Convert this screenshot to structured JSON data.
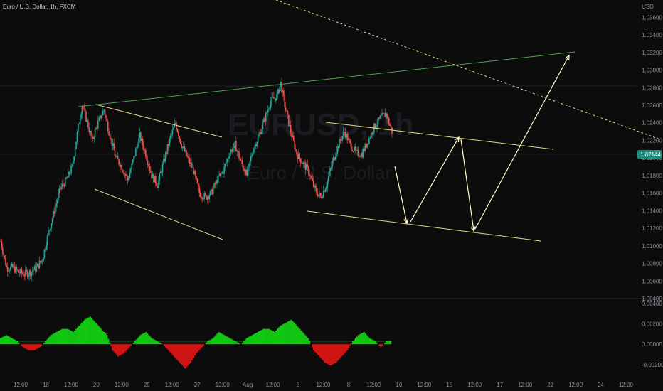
{
  "header": {
    "symbol_title": "Euro / U.S. Dollar, 1h, FXCM",
    "currency": "USD",
    "watermark_symbol": "EURUSD, 1h",
    "watermark_name": "Euro / U.S. Dollar"
  },
  "colors": {
    "background": "#0c0c0c",
    "candle_up": "#26a69a",
    "candle_down": "#ef5350",
    "trendline": "#e6d68a",
    "upper_line": "#4f9d57",
    "dotted_line": "#e6d68a",
    "price_badge": "#1d8b7e",
    "hist_up": "#12c712",
    "hist_down": "#d01515",
    "arrow": "#ffffcc"
  },
  "chart_data": [
    {
      "type": "candlestick",
      "symbol": "EURUSD",
      "timeframe": "1h",
      "source": "FXCM",
      "current_price": "1.02144",
      "y_ticks": [
        "1.03600",
        "1.03400",
        "1.03200",
        "1.03000",
        "1.02800",
        "1.02600",
        "1.02400",
        "1.02200",
        "1.02000",
        "1.01800",
        "1.01600",
        "1.01400",
        "1.01200",
        "1.01000",
        "1.00800",
        "1.00600",
        "1.00400"
      ],
      "x_ticks": [
        "12:00",
        "18",
        "12:00",
        "20",
        "12:00",
        "25",
        "12:00",
        "27",
        "12:00",
        "Aug",
        "12:00",
        "3",
        "12:00",
        "8",
        "12:00",
        "10",
        "12:00",
        "15",
        "12:00",
        "17",
        "12:00",
        "22",
        "12:00",
        "24",
        "12:00"
      ],
      "ylim": [
        1.004,
        1.037
      ],
      "path": [
        [
          0,
          1.0105
        ],
        [
          3,
          1.0075
        ],
        [
          6,
          1.0075
        ],
        [
          9,
          1.007
        ],
        [
          12,
          1.0068
        ],
        [
          15,
          1.007
        ],
        [
          18,
          1.0075
        ],
        [
          21,
          1.0085
        ],
        [
          24,
          1.0115
        ],
        [
          27,
          1.014
        ],
        [
          30,
          1.0165
        ],
        [
          33,
          1.0175
        ],
        [
          36,
          1.019
        ],
        [
          39,
          1.0235
        ],
        [
          41,
          1.026
        ],
        [
          43,
          1.0245
        ],
        [
          46,
          1.022
        ],
        [
          49,
          1.024
        ],
        [
          52,
          1.0255
        ],
        [
          55,
          1.0225
        ],
        [
          58,
          1.02
        ],
        [
          61,
          1.019
        ],
        [
          64,
          1.0175
        ],
        [
          67,
          1.02
        ],
        [
          70,
          1.0225
        ],
        [
          73,
          1.0205
        ],
        [
          76,
          1.018
        ],
        [
          79,
          1.017
        ],
        [
          82,
          1.0195
        ],
        [
          85,
          1.022
        ],
        [
          88,
          1.024
        ],
        [
          91,
          1.0215
        ],
        [
          94,
          1.02
        ],
        [
          97,
          1.0185
        ],
        [
          100,
          1.016
        ],
        [
          103,
          1.0155
        ],
        [
          106,
          1.016
        ],
        [
          109,
          1.0175
        ],
        [
          112,
          1.0185
        ],
        [
          115,
          1.0205
        ],
        [
          118,
          1.0215
        ],
        [
          121,
          1.0195
        ],
        [
          124,
          1.018
        ],
        [
          127,
          1.021
        ],
        [
          130,
          1.0225
        ],
        [
          133,
          1.0245
        ],
        [
          136,
          1.0265
        ],
        [
          139,
          1.027
        ],
        [
          141,
          1.0285
        ],
        [
          143,
          1.026
        ],
        [
          146,
          1.023
        ],
        [
          149,
          1.0205
        ],
        [
          152,
          1.0195
        ],
        [
          155,
          1.0185
        ],
        [
          158,
          1.0165
        ],
        [
          161,
          1.0155
        ],
        [
          164,
          1.017
        ],
        [
          167,
          1.0195
        ],
        [
          170,
          1.0215
        ],
        [
          173,
          1.023
        ],
        [
          176,
          1.0215
        ],
        [
          179,
          1.0205
        ],
        [
          182,
          1.0205
        ],
        [
          185,
          1.022
        ],
        [
          188,
          1.0235
        ],
        [
          191,
          1.0245
        ],
        [
          194,
          1.025
        ],
        [
          197,
          1.023
        ]
      ]
    },
    {
      "type": "bar",
      "series": [
        {
          "name": "",
          "values": [
            2,
            3,
            2,
            1,
            -1,
            -2,
            -2,
            -1,
            1,
            3,
            4,
            5,
            5,
            4,
            6,
            8,
            9,
            7,
            5,
            3,
            -2,
            -4,
            -3,
            -1,
            1,
            3,
            4,
            2,
            1,
            0,
            -2,
            -4,
            -6,
            -8,
            -6,
            -3,
            -1,
            1,
            2,
            4,
            3,
            2,
            1,
            0,
            2,
            3,
            4,
            5,
            5,
            4,
            6,
            7,
            8,
            6,
            4,
            2,
            -2,
            -4,
            -6,
            -7,
            -6,
            -4,
            -2,
            1,
            3,
            4,
            2,
            1,
            -1,
            1
          ]
        }
      ],
      "y_ticks": [
        "0.00400",
        "0.00200",
        "0.00000",
        "-0.00200"
      ],
      "ylim": [
        -0.0025,
        0.0042
      ]
    }
  ]
}
